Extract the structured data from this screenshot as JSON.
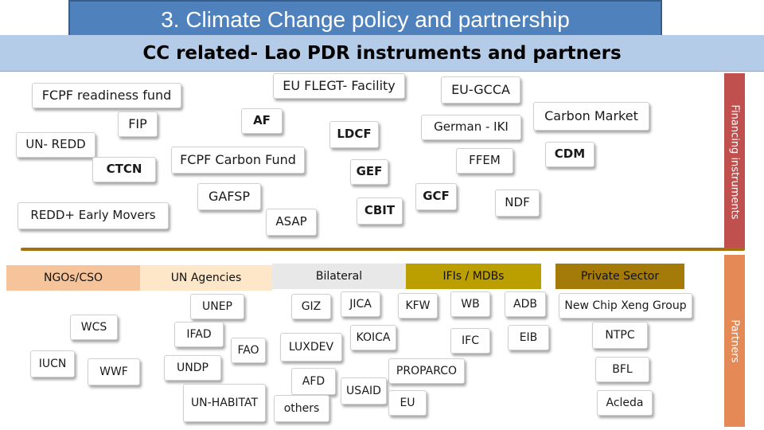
{
  "header": {
    "title": "3. Climate Change policy and partnership",
    "subtitle": "CC related- Lao PDR instruments and partners"
  },
  "financing": {
    "side_label": "Financing instruments",
    "items": [
      "FCPF readiness fund",
      "EU FLEGT- Facility",
      "EU-GCCA",
      "FIP",
      "AF",
      "LDCF",
      "German - IKI",
      "Carbon Market",
      "UN- REDD",
      "CTCN",
      "FCPF Carbon Fund",
      "GEF",
      "FFEM",
      "CDM",
      "GAFSP",
      "GCF",
      "NDF",
      "REDD+ Early Movers",
      "ASAP",
      "CBIT"
    ]
  },
  "partners": {
    "side_label": "Partners",
    "categories": [
      "NGOs/CSO",
      "UN Agencies",
      "Bilateral",
      "IFIs  / MDBs",
      "Private Sector"
    ],
    "items": [
      "UNEP",
      "GIZ",
      "JICA",
      "KFW",
      "WB",
      "ADB",
      "New Chip Xeng Group",
      "WCS",
      "IFAD",
      "FAO",
      "LUXDEV",
      "KOICA",
      "IFC",
      "EIB",
      "NTPC",
      "IUCN",
      "WWF",
      "UNDP",
      "PROPARCO",
      "BFL",
      "AFD",
      "USAID",
      "UN-HABITAT",
      "others",
      "EU",
      "Acleda"
    ]
  },
  "colors": {
    "title_bg": "#4f81bd",
    "subtitle_bg": "#b4cce8",
    "separator": "#a5700f",
    "financing_bar": "#c0504d",
    "partners_bar": "#e58a56",
    "ngos_header": "#f6c49b",
    "un_header": "#fde7c8",
    "bilateral_header": "#e8e8e8",
    "ifis_header": "#bb9f00",
    "private_header": "#a47b08"
  }
}
